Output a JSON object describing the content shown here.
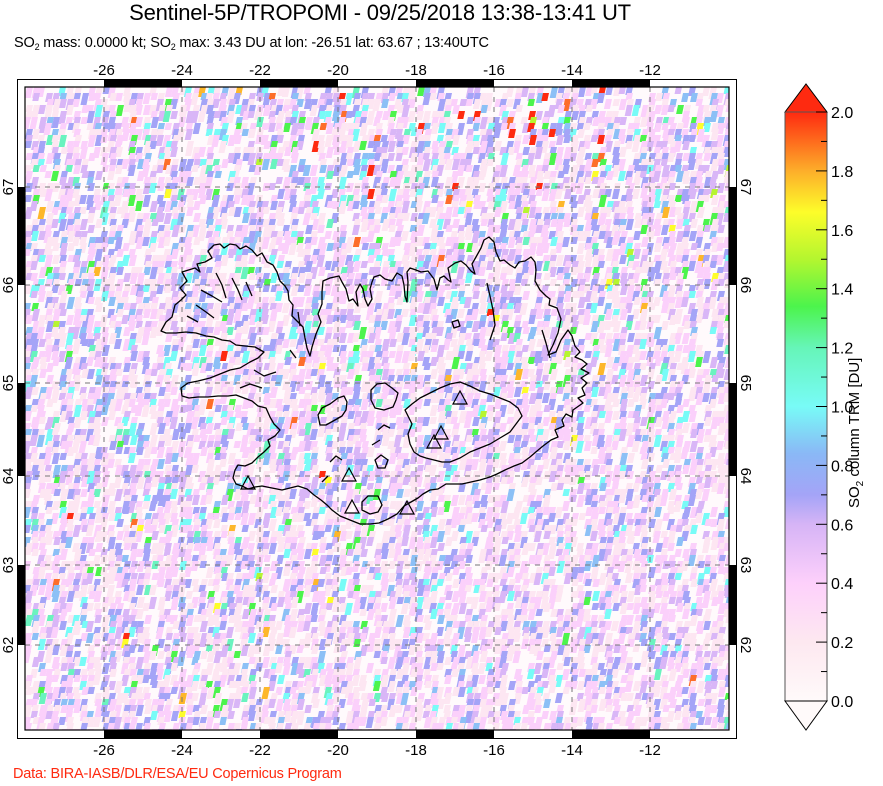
{
  "header": {
    "title": "Sentinel-5P/TROPOMI - 09/25/2018 13:38-13:41 UT",
    "subtitle": {
      "so2_label_1": "SO",
      "so2_sub_1": "2",
      "mass_text": " mass: 0.0000 kt; ",
      "so2_label_2": "SO",
      "so2_sub_2": "2",
      "max_text": " max: 3.43 DU at lon: -26.51 lat: 63.67 ; 13:40UTC"
    }
  },
  "footer": {
    "credit": "Data: BIRA-IASB/DLR/ESA/EU Copernicus Program"
  },
  "map": {
    "lon_ticks": [
      "-26",
      "-24",
      "-22",
      "-20",
      "-18",
      "-16",
      "-14",
      "-12"
    ],
    "lat_ticks": [
      "67",
      "66",
      "65",
      "64",
      "63",
      "62"
    ],
    "volcano_markers": 7
  },
  "colorbar": {
    "label_prefix": "SO",
    "label_sub": "2",
    "label_suffix": " column TRM [DU]",
    "ticks": [
      "2.0",
      "1.8",
      "1.6",
      "1.4",
      "1.2",
      "1.0",
      "0.8",
      "0.6",
      "0.4",
      "0.2",
      "0.0"
    ],
    "colors": [
      "#fffafa",
      "#fde6f2",
      "#fbd0fb",
      "#d9b6f7",
      "#a4a4f7",
      "#8cc0f6",
      "#78fbf7",
      "#6af3bf",
      "#4cf44c",
      "#b6f530",
      "#fdfd2a",
      "#fdb72a",
      "#fd6d2a",
      "#fe2a10"
    ]
  },
  "chart_data": {
    "type": "heatmap",
    "title": "Sentinel-5P/TROPOMI - 09/25/2018 13:38-13:41 UT",
    "subtitle": "SO2 mass: 0.0000 kt; SO2 max: 3.43 DU at lon: -26.51 lat: 63.67 ; 13:40UTC",
    "xlabel": "Longitude",
    "ylabel": "Latitude",
    "x_ticks": [
      -26,
      -24,
      -22,
      -20,
      -18,
      -16,
      -14,
      -12
    ],
    "y_ticks": [
      62,
      63,
      64,
      65,
      66,
      67
    ],
    "xlim": [
      -28,
      -10
    ],
    "ylim": [
      61.2,
      67.9
    ],
    "colorbar_label": "SO2 column TRM [DU]",
    "colorbar_range": [
      0.0,
      2.0
    ],
    "colorbar_ticks": [
      0.0,
      0.2,
      0.4,
      0.6,
      0.8,
      1.0,
      1.2,
      1.4,
      1.6,
      1.8,
      2.0
    ],
    "max_value": {
      "value_du": 3.43,
      "lon": -26.51,
      "lat": 63.67,
      "time": "13:40UTC"
    },
    "so2_mass_kt": 0.0,
    "grid": true,
    "legend_position": "right"
  }
}
